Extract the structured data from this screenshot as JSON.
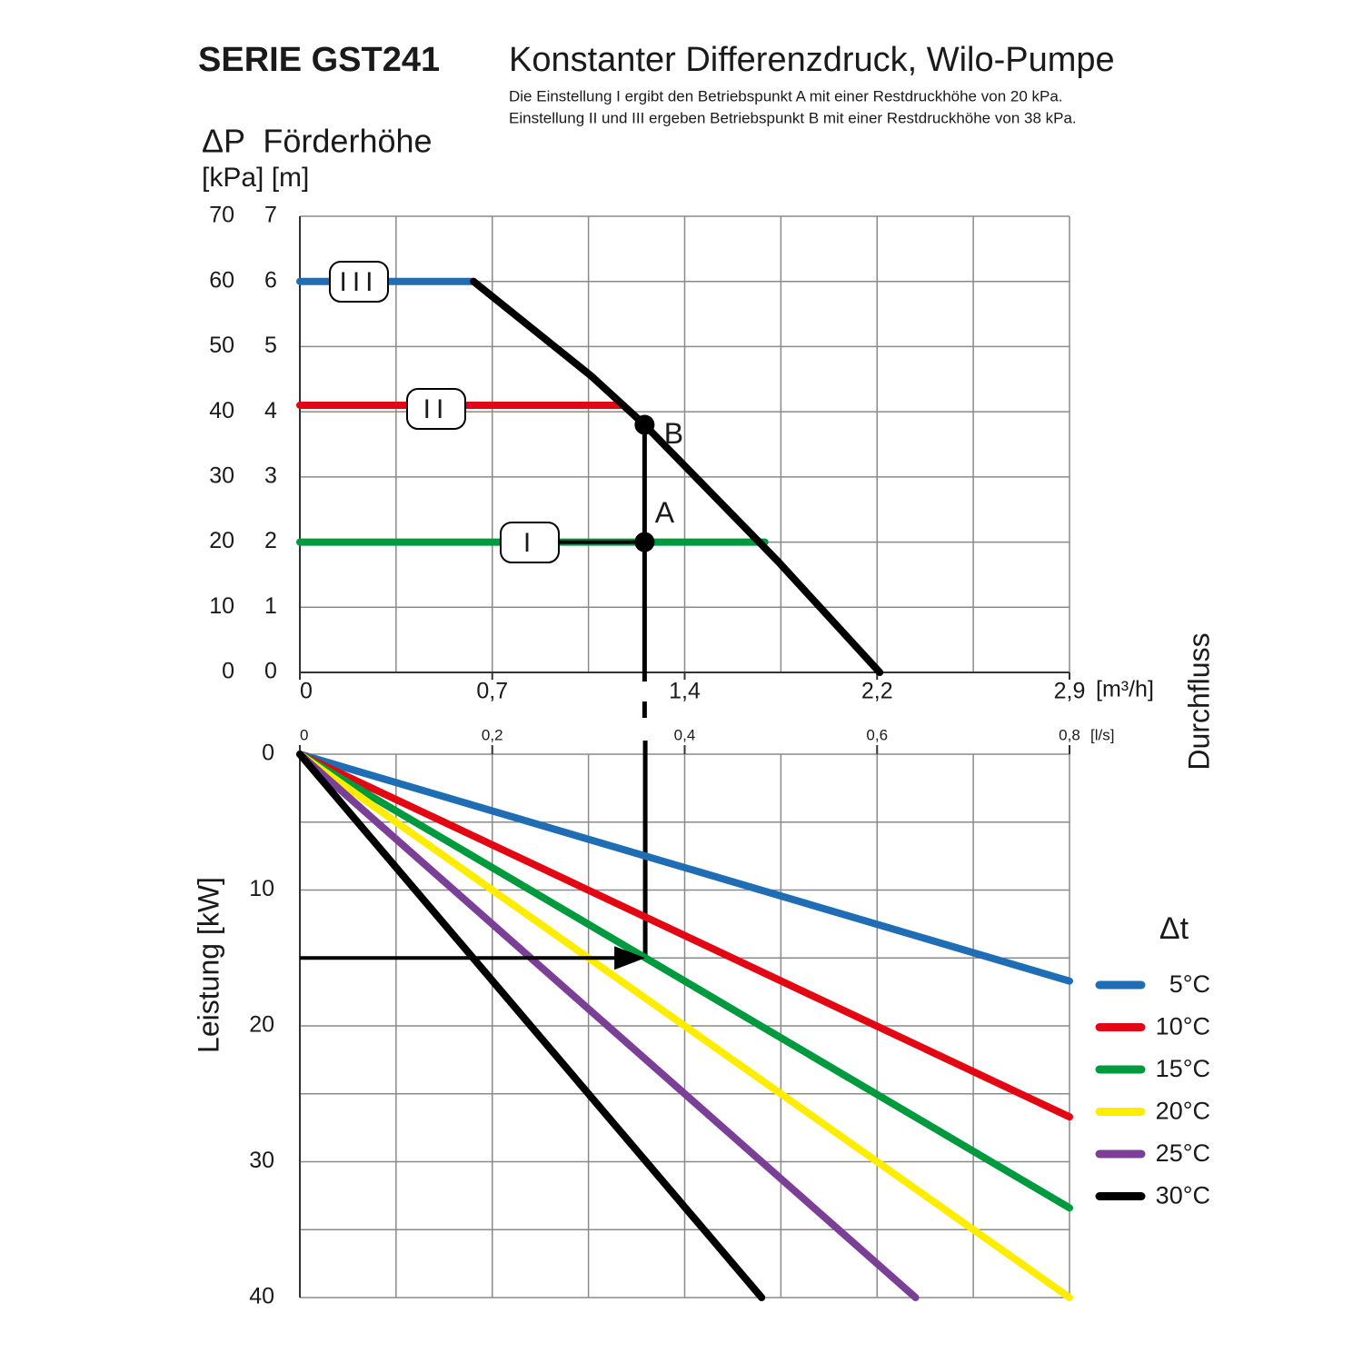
{
  "header": {
    "series": "SERIE GST241",
    "title": "Konstanter Differenzdruck, Wilo-Pumpe",
    "notes": [
      "Die Einstellung I ergibt den Betriebspunkt A mit einer Restdruckhöhe von 20 kPa.",
      "Einstellung II und III ergeben Betriebspunkt B mit einer Restdruckhöhe von 38 kPa."
    ]
  },
  "chart_data": [
    {
      "type": "line",
      "title": "ΔP  Förderhöhe",
      "y_label": "[kPa] [m]",
      "x_label": "[m³/h]",
      "xlim": [
        0,
        2.88
      ],
      "xticks": [
        0,
        {
          "value": 0.72,
          "label": "0,7"
        },
        {
          "value": 1.44,
          "label": "1,4"
        },
        {
          "value": 2.16,
          "label": "2,2"
        },
        {
          "value": 2.88,
          "label": "2,9"
        }
      ],
      "x_minor_grid": [
        0.36,
        1.08,
        1.8,
        2.52
      ],
      "ylim": [
        0,
        70
      ],
      "yticks": [
        0,
        10,
        20,
        30,
        40,
        50,
        60,
        70
      ],
      "y2lim": [
        0,
        7
      ],
      "y2ticks": [
        0,
        1,
        2,
        3,
        4,
        5,
        6,
        7
      ],
      "grid": true,
      "series": [
        {
          "name": "III",
          "color": "#1f6db5",
          "x": [
            0,
            0.65
          ],
          "values": [
            60,
            60
          ]
        },
        {
          "name": "II",
          "color": "#e30613",
          "x": [
            0,
            1.21
          ],
          "values": [
            41,
            41
          ]
        },
        {
          "name": "I",
          "color": "#009a3e",
          "x": [
            0,
            1.74
          ],
          "values": [
            20,
            20
          ]
        },
        {
          "color": "#000000",
          "x": [
            0.65,
            1.09,
            1.29,
            1.79,
            2.17
          ],
          "values": [
            60,
            45.5,
            38,
            17,
            0
          ]
        }
      ],
      "points": [
        {
          "label": "A",
          "x": 1.29,
          "y": 20
        },
        {
          "label": "B",
          "x": 1.29,
          "y": 38
        }
      ]
    },
    {
      "type": "line",
      "x_label": "[l/s]",
      "x_title": "Durchfluss",
      "y_label": "Leistung [kW]",
      "xlim": [
        0,
        0.8
      ],
      "xticks": [
        0,
        {
          "value": 0.2,
          "label": "0,2"
        },
        {
          "value": 0.4,
          "label": "0,4"
        },
        {
          "value": 0.6,
          "label": "0,6"
        },
        {
          "value": 0.8,
          "label": "0,8"
        }
      ],
      "x_minor_grid": [
        0.1,
        0.3,
        0.5,
        0.7
      ],
      "ylim": [
        0,
        40
      ],
      "yticks": [
        0,
        10,
        20,
        30,
        40
      ],
      "y_minor_grid": [
        5,
        15,
        25,
        35
      ],
      "y_inverted": true,
      "grid": true,
      "legend_title": "Δt",
      "legend": "right",
      "series": [
        {
          "name": "5°C",
          "color": "#1f6db5",
          "x": [
            0,
            0.8
          ],
          "values": [
            0,
            16.7
          ]
        },
        {
          "name": "10°C",
          "color": "#e30613",
          "x": [
            0,
            0.8
          ],
          "values": [
            0,
            26.7
          ]
        },
        {
          "name": "15°C",
          "color": "#009a3e",
          "x": [
            0,
            0.8
          ],
          "values": [
            0,
            33.4
          ]
        },
        {
          "name": "20°C",
          "color": "#ffed00",
          "x": [
            0,
            0.8
          ],
          "values": [
            0,
            40
          ]
        },
        {
          "name": "25°C",
          "color": "#7b3f98",
          "x": [
            0,
            0.64
          ],
          "values": [
            0,
            40
          ]
        },
        {
          "name": "30°C",
          "color": "#000000",
          "x": [
            0,
            0.48
          ],
          "values": [
            0,
            40
          ]
        }
      ],
      "reading": {
        "x": 0.359,
        "y": 15
      }
    }
  ]
}
